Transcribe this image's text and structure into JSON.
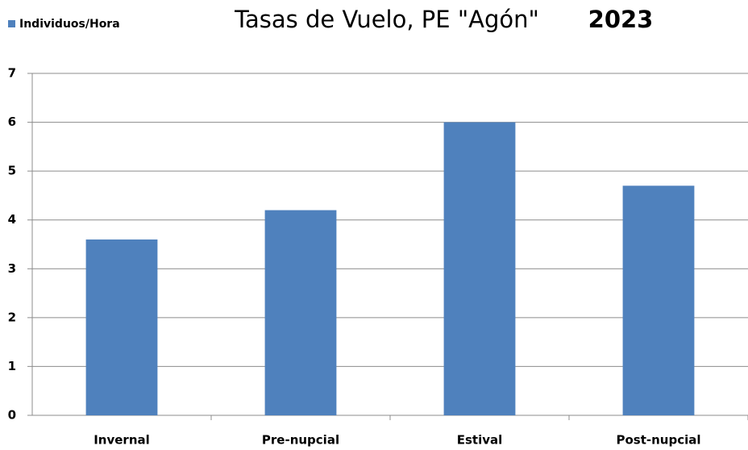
{
  "chart_data": {
    "type": "bar",
    "title": "Tasas de Vuelo, PE \"Agón\"",
    "subtitle": "2023",
    "categories": [
      "Invernal",
      "Pre-nupcial",
      "Estival",
      "Post-nupcial"
    ],
    "series": [
      {
        "name": "Individuos/Hora",
        "color": "#4f81bd",
        "values": [
          3.6,
          4.2,
          6.0,
          4.7
        ]
      }
    ],
    "ylim": [
      0,
      7
    ],
    "yticks": [
      0,
      1,
      2,
      3,
      4,
      5,
      6,
      7
    ],
    "grid": true,
    "legend": "top-left"
  }
}
